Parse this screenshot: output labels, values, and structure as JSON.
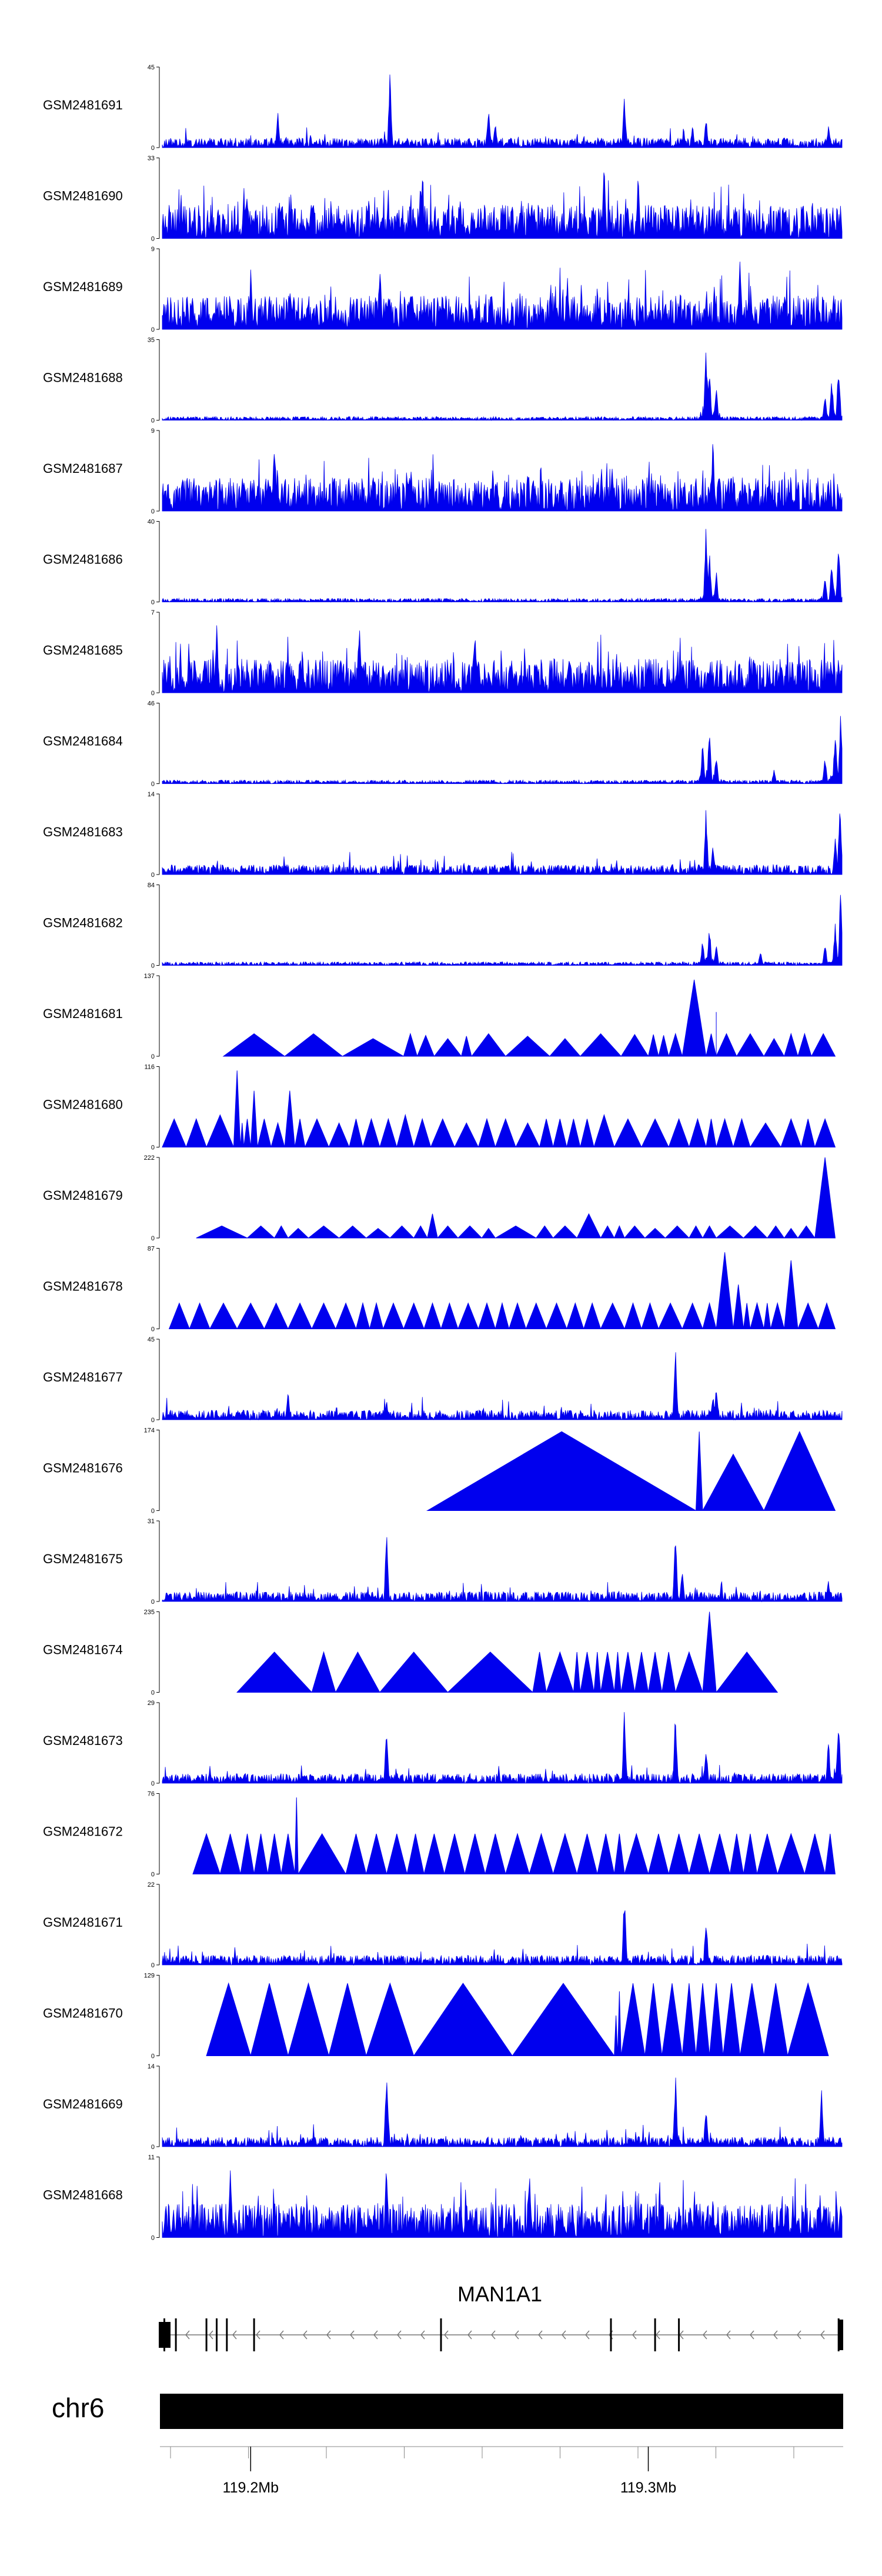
{
  "chart_data": {
    "type": "area",
    "title": "",
    "track_color": "#0000ee",
    "tracks": [
      {
        "name": "GSM2481691",
        "ymax": 45,
        "ymin": 0,
        "style": "spiky",
        "peaks": [
          [
            0.17,
            0.45
          ],
          [
            0.335,
            1.0
          ],
          [
            0.48,
            0.55
          ],
          [
            0.49,
            0.35
          ],
          [
            0.68,
            0.7
          ],
          [
            0.78,
            0.3
          ],
          [
            0.8,
            0.4
          ],
          [
            0.98,
            0.3
          ]
        ]
      },
      {
        "name": "GSM2481690",
        "ymax": 33,
        "ymin": 0,
        "style": "dense",
        "peaks": [
          [
            0.38,
            0.8
          ],
          [
            0.65,
            1.0
          ],
          [
            0.7,
            0.85
          ]
        ]
      },
      {
        "name": "GSM2481689",
        "ymax": 9,
        "ymin": 0,
        "style": "dense",
        "peaks": [
          [
            0.13,
            0.8
          ],
          [
            0.32,
            0.9
          ],
          [
            0.85,
            1.0
          ]
        ]
      },
      {
        "name": "GSM2481688",
        "ymax": 35,
        "ymin": 0,
        "style": "sparse",
        "peaks": [
          [
            0.8,
            1.0
          ],
          [
            0.805,
            0.7
          ],
          [
            0.815,
            0.45
          ],
          [
            0.975,
            0.35
          ],
          [
            0.985,
            0.55
          ],
          [
            0.995,
            0.8
          ]
        ]
      },
      {
        "name": "GSM2481687",
        "ymax": 9,
        "ymin": 0,
        "style": "dense",
        "peaks": [
          [
            0.165,
            1.0
          ],
          [
            0.81,
            0.95
          ]
        ]
      },
      {
        "name": "GSM2481686",
        "ymax": 40,
        "ymin": 0,
        "style": "sparse",
        "peaks": [
          [
            0.8,
            1.0
          ],
          [
            0.805,
            0.65
          ],
          [
            0.815,
            0.4
          ],
          [
            0.975,
            0.35
          ],
          [
            0.985,
            0.6
          ],
          [
            0.995,
            0.9
          ]
        ]
      },
      {
        "name": "GSM2481685",
        "ymax": 7,
        "ymin": 0,
        "style": "dense",
        "peaks": [
          [
            0.08,
            0.95
          ],
          [
            0.29,
            1.0
          ],
          [
            0.46,
            0.95
          ]
        ]
      },
      {
        "name": "GSM2481684",
        "ymax": 46,
        "ymin": 0,
        "style": "sparse",
        "peaks": [
          [
            0.795,
            0.55
          ],
          [
            0.805,
            0.75
          ],
          [
            0.815,
            0.4
          ],
          [
            0.9,
            0.2
          ],
          [
            0.975,
            0.35
          ],
          [
            0.99,
            0.7
          ],
          [
            0.998,
            0.95
          ]
        ]
      },
      {
        "name": "GSM2481683",
        "ymax": 14,
        "ymin": 0,
        "style": "spiky",
        "peaks": [
          [
            0.8,
            0.85
          ],
          [
            0.81,
            0.4
          ],
          [
            0.99,
            0.5
          ],
          [
            0.997,
            1.0
          ]
        ]
      },
      {
        "name": "GSM2481682",
        "ymax": 84,
        "ymin": 0,
        "style": "sparse",
        "peaks": [
          [
            0.795,
            0.35
          ],
          [
            0.805,
            0.5
          ],
          [
            0.815,
            0.3
          ],
          [
            0.88,
            0.2
          ],
          [
            0.975,
            0.3
          ],
          [
            0.99,
            0.6
          ],
          [
            0.998,
            1.0
          ]
        ]
      },
      {
        "name": "GSM2481681",
        "ymax": 137,
        "ymin": 0,
        "style": "triangles",
        "breakpoints": [
          0.09,
          0.18,
          0.265,
          0.355,
          0.375,
          0.4,
          0.44,
          0.455,
          0.505,
          0.57,
          0.615,
          0.675,
          0.715,
          0.73,
          0.745,
          0.765,
          0.8,
          0.815,
          0.815,
          0.845,
          0.885,
          0.915,
          0.935,
          0.955,
          0.99
        ],
        "peaks": [
          0.28,
          0.28,
          0.22,
          0.28,
          0.26,
          0.22,
          0.25,
          0.28,
          0.25,
          0.22,
          0.28,
          0.27,
          0.27,
          0.26,
          0.28,
          0.95,
          0.28,
          0.55,
          0.28,
          0.28,
          0.22,
          0.28,
          0.28,
          0.28
        ]
      },
      {
        "name": "GSM2481680",
        "ymax": 116,
        "ymin": 0,
        "style": "triangles",
        "breakpoints": [
          0.0,
          0.035,
          0.065,
          0.105,
          0.115,
          0.12,
          0.13,
          0.14,
          0.16,
          0.18,
          0.195,
          0.21,
          0.245,
          0.275,
          0.295,
          0.32,
          0.345,
          0.37,
          0.395,
          0.43,
          0.465,
          0.49,
          0.52,
          0.555,
          0.575,
          0.595,
          0.615,
          0.635,
          0.665,
          0.705,
          0.745,
          0.775,
          0.8,
          0.815,
          0.84,
          0.865,
          0.91,
          0.94,
          0.96,
          0.99
        ],
        "peaks": [
          0.35,
          0.35,
          0.4,
          0.95,
          0.3,
          0.35,
          0.7,
          0.35,
          0.3,
          0.7,
          0.35,
          0.35,
          0.3,
          0.35,
          0.35,
          0.35,
          0.4,
          0.35,
          0.35,
          0.3,
          0.35,
          0.35,
          0.3,
          0.35,
          0.35,
          0.35,
          0.35,
          0.4,
          0.35,
          0.35,
          0.35,
          0.35,
          0.35,
          0.35,
          0.35,
          0.3,
          0.35,
          0.35,
          0.35
        ]
      },
      {
        "name": "GSM2481679",
        "ymax": 222,
        "ymin": 0,
        "style": "triangles",
        "breakpoints": [
          0.05,
          0.125,
          0.165,
          0.185,
          0.215,
          0.26,
          0.3,
          0.335,
          0.37,
          0.39,
          0.405,
          0.435,
          0.47,
          0.49,
          0.55,
          0.575,
          0.61,
          0.645,
          0.665,
          0.68,
          0.71,
          0.74,
          0.775,
          0.795,
          0.815,
          0.855,
          0.89,
          0.915,
          0.935,
          0.96,
          0.99
        ],
        "peaks": [
          0.15,
          0.15,
          0.15,
          0.12,
          0.15,
          0.15,
          0.12,
          0.15,
          0.15,
          0.3,
          0.15,
          0.15,
          0.12,
          0.15,
          0.15,
          0.15,
          0.3,
          0.15,
          0.15,
          0.15,
          0.12,
          0.15,
          0.15,
          0.15,
          0.15,
          0.15,
          0.15,
          0.12,
          0.15,
          1.0
        ]
      },
      {
        "name": "GSM2481678",
        "ymax": 87,
        "ymin": 0,
        "style": "triangles",
        "breakpoints": [
          0.01,
          0.04,
          0.07,
          0.11,
          0.15,
          0.185,
          0.22,
          0.255,
          0.285,
          0.305,
          0.325,
          0.355,
          0.385,
          0.41,
          0.435,
          0.465,
          0.49,
          0.51,
          0.535,
          0.565,
          0.595,
          0.62,
          0.645,
          0.68,
          0.705,
          0.73,
          0.765,
          0.795,
          0.815,
          0.84,
          0.855,
          0.865,
          0.885,
          0.895,
          0.915,
          0.935,
          0.965,
          0.99
        ],
        "peaks": [
          0.32,
          0.32,
          0.32,
          0.32,
          0.32,
          0.32,
          0.32,
          0.32,
          0.32,
          0.32,
          0.32,
          0.32,
          0.32,
          0.32,
          0.32,
          0.32,
          0.32,
          0.32,
          0.32,
          0.32,
          0.32,
          0.32,
          0.32,
          0.32,
          0.32,
          0.32,
          0.32,
          0.32,
          0.95,
          0.55,
          0.32,
          0.32,
          0.32,
          0.32,
          0.85,
          0.32,
          0.32
        ]
      },
      {
        "name": "GSM2481677",
        "ymax": 45,
        "ymin": 0,
        "style": "spiky",
        "peaks": [
          [
            0.185,
            0.4
          ],
          [
            0.33,
            0.25
          ],
          [
            0.755,
            1.0
          ],
          [
            0.81,
            0.35
          ],
          [
            0.815,
            0.45
          ]
        ]
      },
      {
        "name": "GSM2481676",
        "ymax": 174,
        "ymin": 0,
        "style": "triangles",
        "breakpoints": [
          0.39,
          0.785,
          0.795,
          0.885,
          0.99
        ],
        "peaks": [
          0.98,
          0.98,
          0.7,
          0.98
        ]
      },
      {
        "name": "GSM2481675",
        "ymax": 31,
        "ymin": 0,
        "style": "spiky",
        "peaks": [
          [
            0.33,
            0.9
          ],
          [
            0.755,
            1.0
          ],
          [
            0.765,
            0.45
          ],
          [
            0.98,
            0.3
          ]
        ]
      },
      {
        "name": "GSM2481674",
        "ymax": 235,
        "ymin": 0,
        "style": "triangles",
        "breakpoints": [
          0.11,
          0.22,
          0.255,
          0.32,
          0.42,
          0.545,
          0.565,
          0.605,
          0.615,
          0.635,
          0.645,
          0.665,
          0.675,
          0.695,
          0.715,
          0.735,
          0.755,
          0.795,
          0.815,
          0.905
        ],
        "peaks": [
          0.5,
          0.5,
          0.5,
          0.5,
          0.5,
          0.5,
          0.5,
          0.5,
          0.5,
          0.5,
          0.5,
          0.5,
          0.5,
          0.5,
          0.5,
          0.5,
          0.5,
          1.0,
          0.5
        ]
      },
      {
        "name": "GSM2481673",
        "ymax": 29,
        "ymin": 0,
        "style": "spiky",
        "peaks": [
          [
            0.33,
            0.8
          ],
          [
            0.68,
            1.0
          ],
          [
            0.755,
            0.95
          ],
          [
            0.8,
            0.5
          ],
          [
            0.98,
            0.6
          ],
          [
            0.995,
            0.9
          ]
        ]
      },
      {
        "name": "GSM2481672",
        "ymax": 76,
        "ymin": 0,
        "style": "triangles",
        "breakpoints": [
          0.045,
          0.085,
          0.115,
          0.135,
          0.155,
          0.175,
          0.195,
          0.2,
          0.27,
          0.3,
          0.33,
          0.36,
          0.385,
          0.415,
          0.445,
          0.475,
          0.505,
          0.54,
          0.575,
          0.61,
          0.64,
          0.665,
          0.68,
          0.715,
          0.745,
          0.775,
          0.805,
          0.835,
          0.855,
          0.875,
          0.905,
          0.945,
          0.975,
          0.99
        ],
        "peaks": [
          0.5,
          0.5,
          0.5,
          0.5,
          0.5,
          0.5,
          0.95,
          0.5,
          0.5,
          0.5,
          0.5,
          0.5,
          0.5,
          0.5,
          0.5,
          0.5,
          0.5,
          0.5,
          0.5,
          0.5,
          0.5,
          0.5,
          0.5,
          0.5,
          0.5,
          0.5,
          0.5,
          0.5,
          0.5,
          0.5,
          0.5,
          0.5,
          0.5
        ]
      },
      {
        "name": "GSM2481671",
        "ymax": 22,
        "ymin": 0,
        "style": "spiky",
        "peaks": [
          [
            0.68,
            1.0
          ],
          [
            0.8,
            0.65
          ]
        ]
      },
      {
        "name": "GSM2481670",
        "ymax": 129,
        "ymin": 0,
        "style": "triangles",
        "breakpoints": [
          0.065,
          0.13,
          0.185,
          0.245,
          0.3,
          0.37,
          0.515,
          0.665,
          0.67,
          0.675,
          0.71,
          0.735,
          0.765,
          0.785,
          0.805,
          0.825,
          0.85,
          0.885,
          0.92,
          0.98
        ],
        "peaks": [
          0.9,
          0.9,
          0.9,
          0.9,
          0.9,
          0.9,
          0.9,
          0.5,
          0.8,
          0.9,
          0.9,
          0.9,
          0.9,
          0.9,
          0.9,
          0.9,
          0.9,
          0.9,
          0.9
        ]
      },
      {
        "name": "GSM2481669",
        "ymax": 14,
        "ymin": 0,
        "style": "spiky",
        "peaks": [
          [
            0.33,
            1.0
          ],
          [
            0.755,
            0.95
          ],
          [
            0.8,
            0.55
          ],
          [
            0.97,
            0.75
          ]
        ]
      },
      {
        "name": "GSM2481668",
        "ymax": 11,
        "ymin": 0,
        "style": "dense",
        "peaks": [
          [
            0.1,
            1.0
          ],
          [
            0.33,
            1.0
          ],
          [
            0.54,
            0.9
          ]
        ]
      }
    ],
    "gene": {
      "name": "MAN1A1",
      "strand": "-",
      "exons": [
        0.003,
        0.02,
        0.065,
        0.08,
        0.095,
        0.135,
        0.41,
        0.66,
        0.725,
        0.76,
        0.995
      ]
    },
    "chromosome": "chr6",
    "axis": {
      "ticks": [
        "119.2Mb",
        "119.3Mb"
      ],
      "tick_positions": [
        0.13,
        0.715
      ],
      "minor_ticks": 9
    }
  }
}
